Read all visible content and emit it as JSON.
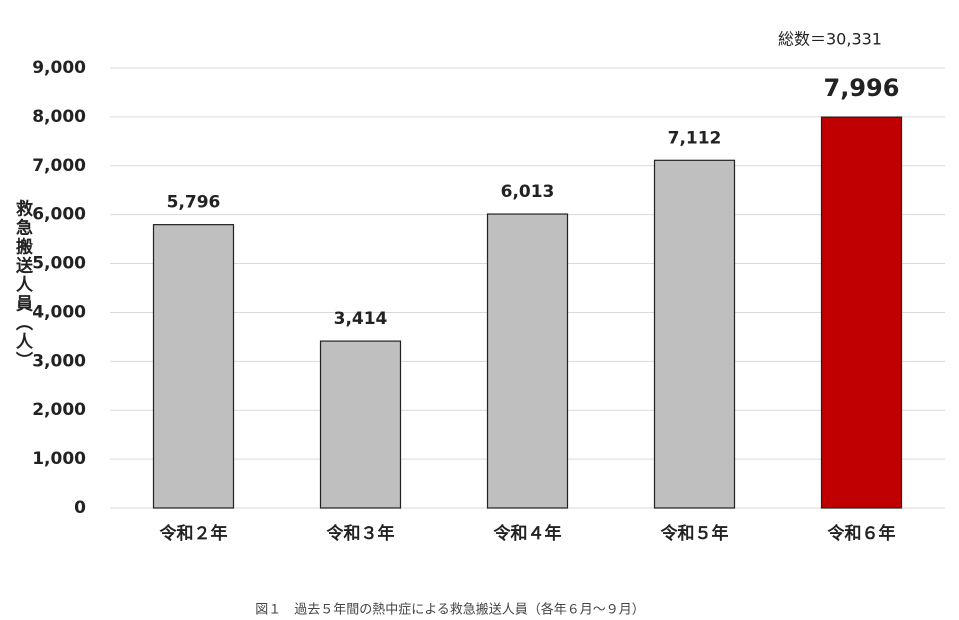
{
  "chart_data": {
    "type": "bar",
    "y_label": "救急搬送人員（人）",
    "annotation": "総数＝30,331",
    "caption": "図１　過去５年間の熱中症による救急搬送人員（各年６月～９月）",
    "categories": [
      "令和２年",
      "令和３年",
      "令和４年",
      "令和５年",
      "令和６年"
    ],
    "values": [
      5796,
      3414,
      6013,
      7112,
      7996
    ],
    "value_labels": [
      "5,796",
      "3,414",
      "6,013",
      "7,112",
      "7,996"
    ],
    "colors": [
      "#bfbfbf",
      "#bfbfbf",
      "#bfbfbf",
      "#bfbfbf",
      "#c00000"
    ],
    "ylim": [
      0,
      9000
    ],
    "yticks": [
      0,
      {
        "value": 1000,
        "label": "1,000"
      },
      {
        "value": 2000,
        "label": "2,000"
      },
      {
        "value": 3000,
        "label": "3,000"
      },
      {
        "value": 4000,
        "label": "4,000"
      },
      {
        "value": 5000,
        "label": "5,000"
      },
      {
        "value": 6000,
        "label": "6,000"
      },
      {
        "value": 7000,
        "label": "7,000"
      },
      {
        "value": 8000,
        "label": "8,000"
      },
      {
        "value": 9000,
        "label": "9,000"
      }
    ],
    "grid": true
  }
}
